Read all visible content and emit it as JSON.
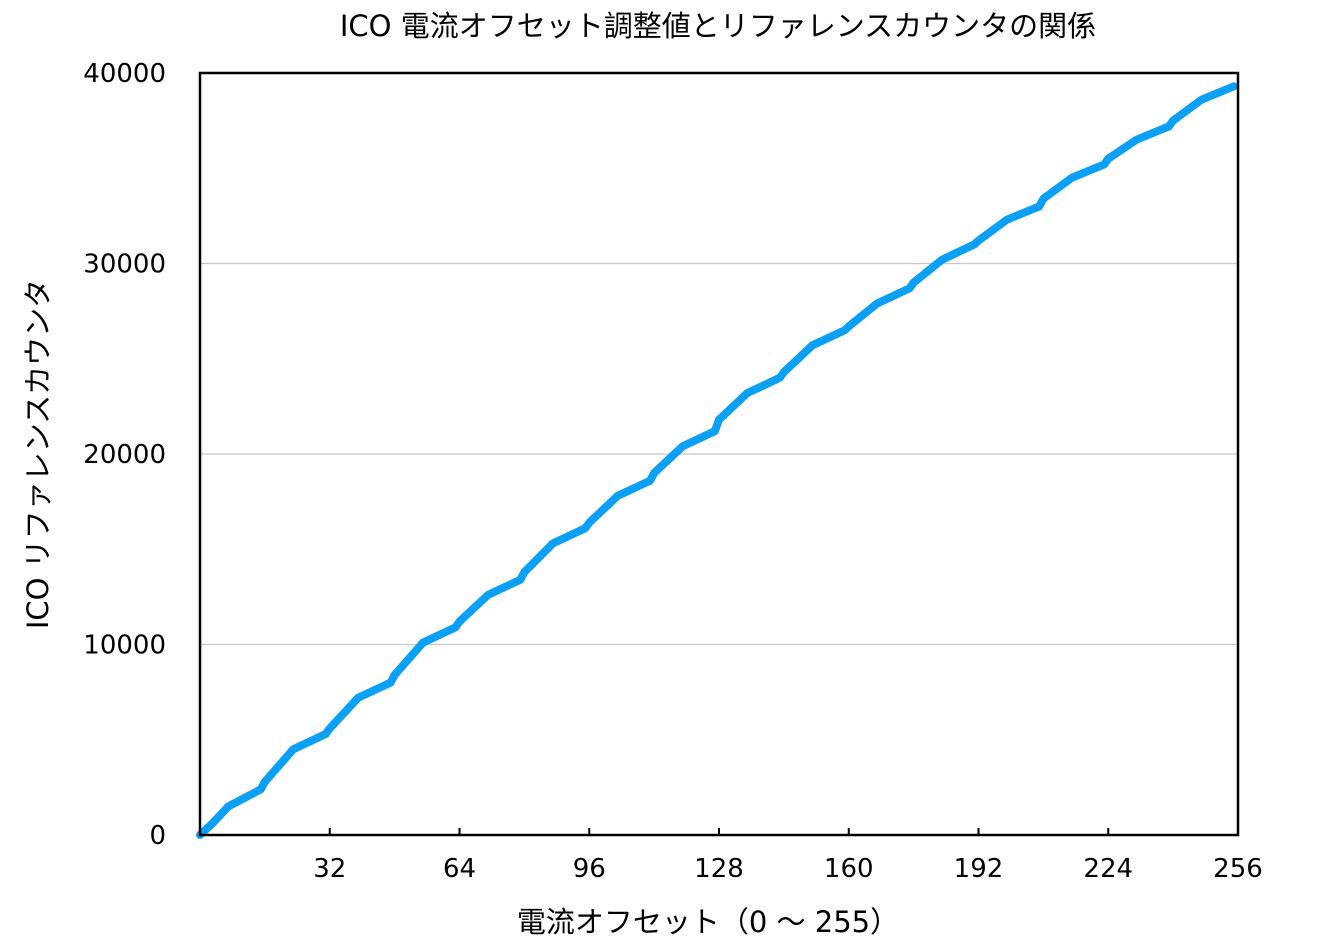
{
  "chart_data": {
    "type": "line",
    "title": "ICO 電流オフセット調整値とリファレンスカウンタの関係",
    "xlabel": "電流オフセット（0 〜 255）",
    "ylabel": "ICO リファレンスカウンタ",
    "xlim": [
      0,
      256
    ],
    "ylim": [
      0,
      40000
    ],
    "x_ticks": [
      32,
      64,
      96,
      128,
      160,
      192,
      224,
      256
    ],
    "y_ticks": [
      0,
      10000,
      20000,
      30000,
      40000
    ],
    "x_tick_labels": [
      "32",
      "64",
      "96",
      "128",
      "160",
      "192",
      "224",
      "256"
    ],
    "y_tick_labels": [
      "0",
      "10000",
      "20000",
      "30000",
      "40000"
    ],
    "grid": "horizontal",
    "legend": "none",
    "series": [
      {
        "color": "#0aa0f5",
        "x": [
          0,
          3,
          7,
          15,
          16,
          23,
          31,
          32,
          39,
          47,
          48,
          55,
          63,
          64,
          71,
          79,
          80,
          87,
          95,
          96,
          103,
          111,
          112,
          119,
          127,
          128,
          135,
          143,
          144,
          151,
          159,
          160,
          167,
          175,
          176,
          183,
          191,
          192,
          199,
          207,
          208,
          215,
          223,
          224,
          231,
          239,
          240,
          247,
          255
        ],
        "values": [
          0,
          600,
          1500,
          2400,
          2800,
          4500,
          5300,
          5600,
          7200,
          8000,
          8400,
          10100,
          10900,
          11200,
          12600,
          13400,
          13800,
          15300,
          16100,
          16400,
          17800,
          18600,
          19000,
          20400,
          21200,
          21800,
          23200,
          24000,
          24300,
          25700,
          26500,
          26700,
          27900,
          28700,
          29000,
          30200,
          31000,
          31200,
          32300,
          33000,
          33400,
          34500,
          35200,
          35500,
          36500,
          37200,
          37500,
          38600,
          39300
        ]
      }
    ]
  }
}
